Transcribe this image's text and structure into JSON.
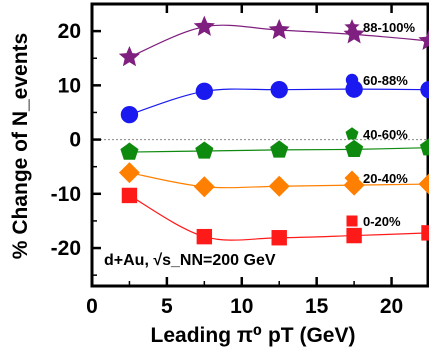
{
  "chart_data": {
    "type": "scatter",
    "title": "",
    "xlabel": "Leading π⁰ pT (GeV)",
    "ylabel": "% Change of N_events",
    "annotation": "d+Au, √s_NN=200 GeV",
    "xlim": [
      0,
      22.5
    ],
    "ylim": [
      -27,
      25
    ],
    "xticks": [
      0,
      5,
      10,
      15,
      20
    ],
    "yticks": [
      20,
      10,
      0,
      -10,
      -20
    ],
    "x": [
      2.5,
      7.5,
      12.5,
      17.5,
      22.5
    ],
    "reference_line_y": 0,
    "series": [
      {
        "name": "88-100%",
        "marker": "star",
        "color": "#7f1f7f",
        "values": [
          15.2,
          20.8,
          20.2,
          19.4,
          18.2
        ]
      },
      {
        "name": "60-88%",
        "marker": "circle",
        "color": "#1a1af0",
        "values": [
          4.6,
          8.9,
          9.2,
          9.3,
          9.2
        ]
      },
      {
        "name": "40-60%",
        "marker": "pentagon",
        "color": "#0e8a0e",
        "values": [
          -2.3,
          -2.1,
          -1.9,
          -1.8,
          -1.5
        ]
      },
      {
        "name": "20-40%",
        "marker": "diamond",
        "color": "#ff8000",
        "values": [
          -6.1,
          -8.7,
          -8.6,
          -8.4,
          -8.2
        ]
      },
      {
        "name": "0-20%",
        "marker": "square",
        "color": "#ff1a1a",
        "values": [
          -10.3,
          -17.9,
          -18.1,
          -17.7,
          -17.2
        ]
      }
    ]
  }
}
